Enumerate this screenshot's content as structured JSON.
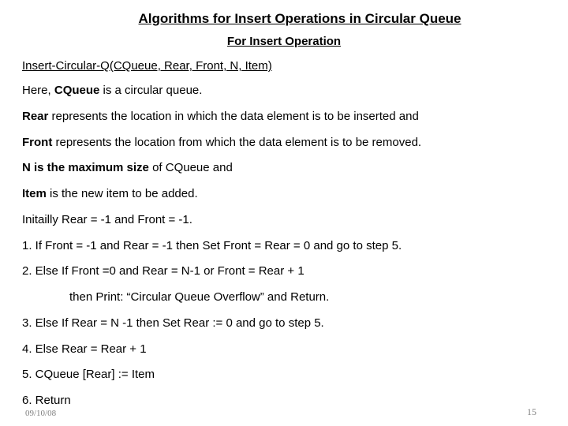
{
  "title": "Algorithms for Insert Operations in Circular Queue",
  "subtitle": "For Insert Operation",
  "signature": "Insert-Circular-Q(CQueue, Rear, Front, N, Item)",
  "def_cqueue_pre": "Here, ",
  "def_cqueue_bold": "CQueue",
  "def_cqueue_post": " is a circular queue.",
  "def_rear_bold": "Rear",
  "def_rear_post": " represents the location in which the data element is to be inserted and",
  "def_front_bold": "Front",
  "def_front_post": " represents the location from which the data element is to be removed.",
  "def_n_bold": "N is the maximum size",
  "def_n_post": " of CQueue and",
  "def_item_bold": "Item",
  "def_item_post": " is the new item to be added.",
  "init": "Initailly Rear = -1 and Front = -1.",
  "step1": "1.  If Front = -1 and Rear = -1 then Set Front = Rear = 0 and go to step 5.",
  "step2": "2. Else If  Front =0 and Rear = N-1 or Front = Rear + 1",
  "step2b": "then Print: “Circular Queue Overflow” and Return.",
  "step3": "3. Else If Rear = N -1  then Set Rear := 0 and go to step 5.",
  "step4": "4.  Else Rear = Rear + 1",
  "step5": "5. CQueue [Rear] := Item",
  "step6": "6.  Return",
  "date": "09/10/08",
  "page": "15"
}
